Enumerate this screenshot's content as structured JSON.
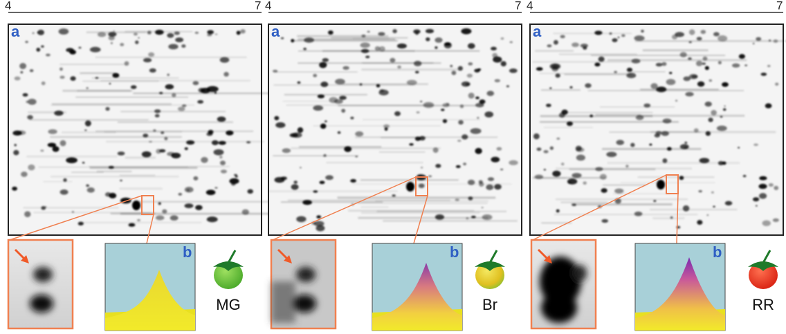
{
  "panels": [
    {
      "ph_start": "4",
      "ph_end": "7",
      "gel_label": "a",
      "peak_label": "b",
      "stage": "MG"
    },
    {
      "ph_start": "4",
      "ph_end": "7",
      "gel_label": "a",
      "peak_label": "b",
      "stage": "Br"
    },
    {
      "ph_start": "4",
      "ph_end": "7",
      "gel_label": "a",
      "peak_label": "b",
      "stage": "RR"
    }
  ]
}
